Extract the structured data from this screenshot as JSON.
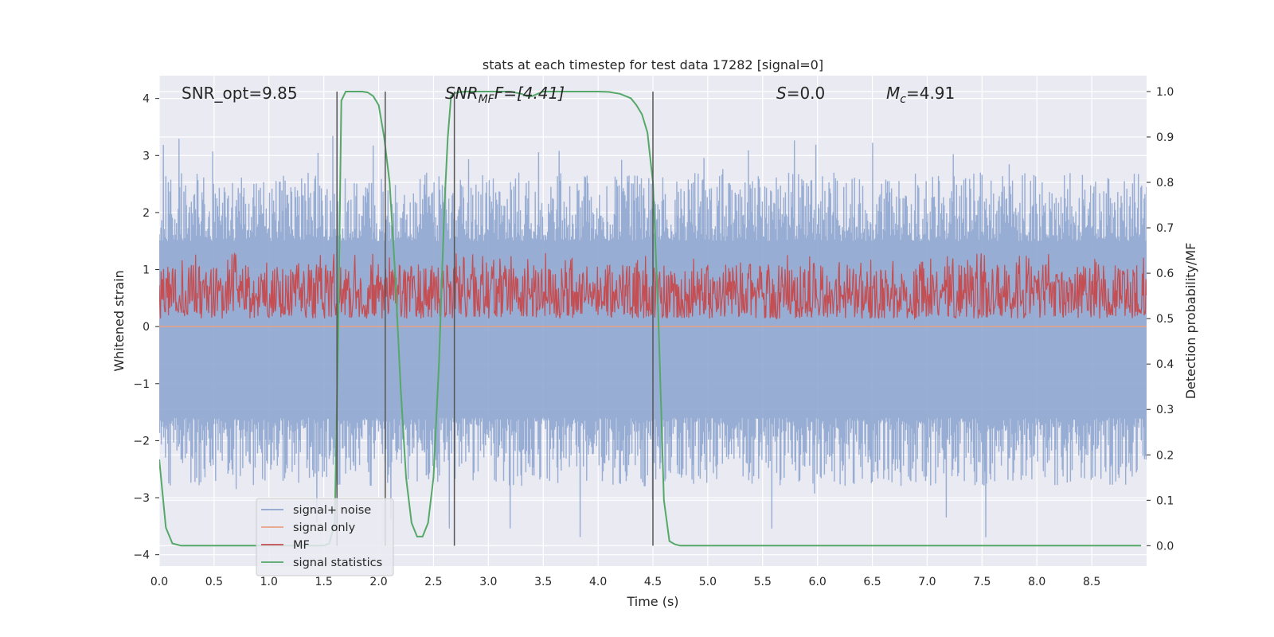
{
  "chart_data": {
    "type": "line",
    "title": "stats at each timestep for test data 17282 [signal=0]",
    "xlabel": "Time (s)",
    "ylabel_left": "Whitened strain",
    "ylabel_right": "Detection probability/MF",
    "xlim": [
      0.0,
      9.0
    ],
    "ylim_left": [
      -4.2,
      4.4
    ],
    "ylim_right": [
      -0.045,
      1.035
    ],
    "x_ticks": [
      "0.0",
      "0.5",
      "1.0",
      "1.5",
      "2.0",
      "2.5",
      "3.0",
      "3.5",
      "4.0",
      "4.5",
      "5.0",
      "5.5",
      "6.0",
      "6.5",
      "7.0",
      "7.5",
      "8.0",
      "8.5"
    ],
    "x_tick_values": [
      0,
      0.5,
      1,
      1.5,
      2,
      2.5,
      3,
      3.5,
      4,
      4.5,
      5,
      5.5,
      6,
      6.5,
      7,
      7.5,
      8,
      8.5
    ],
    "y_left_ticks": [
      "4",
      "3",
      "2",
      "1",
      "0",
      "−1",
      "−2",
      "−3",
      "−4"
    ],
    "y_left_tick_values": [
      4,
      3,
      2,
      1,
      0,
      -1,
      -2,
      -3,
      -4
    ],
    "y_right_ticks": [
      "1.0",
      "0.9",
      "0.8",
      "0.7",
      "0.6",
      "0.5",
      "0.4",
      "0.3",
      "0.2",
      "0.1",
      "0.0"
    ],
    "y_right_tick_values": [
      1.0,
      0.9,
      0.8,
      0.7,
      0.6,
      0.5,
      0.4,
      0.3,
      0.2,
      0.1,
      0.0
    ],
    "grid": true,
    "legend_position": "lower-left",
    "annotations": {
      "snr_opt": "SNR_opt=9.85",
      "snr_mf_main": "SNR",
      "snr_mf_sub": "MF",
      "snr_mf_rest": "F=[4.41]",
      "s_main": "S",
      "s_rest": "=0.0",
      "mc_main": "M",
      "mc_sub": "c",
      "mc_rest": "=4.91"
    },
    "series": [
      {
        "name": "signal+ noise",
        "color": "#8fa6cf",
        "axis": "left",
        "envelope": {
          "upper_typical": [
            1.5,
            2.7
          ],
          "upper_max": 3.4,
          "lower_typical": [
            -1.6,
            -2.8
          ],
          "lower_min": -3.7
        }
      },
      {
        "name": "signal only",
        "color": "#e8a085",
        "axis": "left",
        "values_constant": 0.0
      },
      {
        "name": "MF",
        "color": "#c44e52",
        "axis": "right",
        "band": [
          0.5,
          0.62
        ]
      },
      {
        "name": "signal statistics",
        "color": "#55a868",
        "axis": "right",
        "x": [
          0.0,
          0.06,
          0.12,
          0.2,
          0.3,
          0.5,
          1.0,
          1.5,
          1.55,
          1.6,
          1.63,
          1.66,
          1.7,
          1.75,
          1.8,
          1.85,
          1.9,
          1.95,
          2.0,
          2.05,
          2.1,
          2.15,
          2.2,
          2.25,
          2.3,
          2.35,
          2.4,
          2.45,
          2.5,
          2.55,
          2.6,
          2.63,
          2.66,
          2.7,
          2.75,
          2.8,
          2.9,
          3.0,
          3.2,
          3.3,
          3.35,
          3.4,
          3.45,
          3.5,
          3.6,
          3.8,
          4.0,
          4.1,
          4.2,
          4.3,
          4.35,
          4.4,
          4.45,
          4.5,
          4.55,
          4.6,
          4.65,
          4.7,
          4.75,
          4.8,
          5.0,
          6.0,
          7.0,
          8.0,
          8.95
        ],
        "y": [
          0.19,
          0.04,
          0.005,
          0.0,
          0.0,
          0.0,
          0.0,
          0.0,
          0.005,
          0.05,
          0.45,
          0.98,
          1.0,
          1.0,
          1.0,
          1.0,
          0.998,
          0.99,
          0.97,
          0.9,
          0.8,
          0.6,
          0.35,
          0.15,
          0.05,
          0.02,
          0.02,
          0.05,
          0.15,
          0.4,
          0.75,
          0.9,
          0.99,
          0.997,
          0.999,
          1.0,
          1.0,
          1.0,
          1.0,
          0.995,
          0.99,
          0.99,
          0.995,
          1.0,
          1.0,
          1.0,
          1.0,
          0.999,
          0.995,
          0.985,
          0.97,
          0.95,
          0.91,
          0.8,
          0.5,
          0.1,
          0.01,
          0.003,
          0.0,
          0.0,
          0.0,
          0.0,
          0.0,
          0.0,
          0.0
        ]
      }
    ],
    "vertical_markers_x": [
      1.62,
      2.06,
      2.69,
      4.5
    ]
  }
}
